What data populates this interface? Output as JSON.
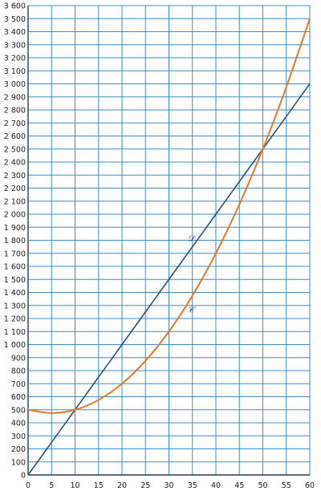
{
  "chart_data": {
    "type": "line",
    "title": "",
    "xlabel": "",
    "ylabel": "",
    "xlim": [
      0,
      60
    ],
    "ylim": [
      0,
      3600
    ],
    "grid": true,
    "x_ticks": [
      0,
      5,
      10,
      15,
      20,
      25,
      30,
      35,
      40,
      45,
      50,
      55,
      60
    ],
    "y_ticks": [
      0,
      100,
      200,
      300,
      400,
      500,
      600,
      700,
      800,
      900,
      1000,
      1100,
      1200,
      1300,
      1400,
      1500,
      1600,
      1700,
      1800,
      1900,
      2000,
      2100,
      2200,
      2300,
      2400,
      2500,
      2600,
      2700,
      2800,
      2900,
      3000,
      3100,
      3200,
      3300,
      3400,
      3500,
      3600
    ],
    "x_tick_labels": [
      "0",
      "5",
      "10",
      "15",
      "20",
      "25",
      "30",
      "35",
      "40",
      "45",
      "50",
      "55",
      "60"
    ],
    "y_tick_labels": [
      "0",
      "100",
      "200",
      "300",
      "400",
      "500",
      "600",
      "700",
      "800",
      "900",
      "1 000",
      "1 100",
      "1 200",
      "1 300",
      "1 400",
      "1 500",
      "1 600",
      "1 700",
      "1 800",
      "1 900",
      "2 000",
      "2 100",
      "2 200",
      "2 300",
      "2 400",
      "2 500",
      "2 600",
      "2 700",
      "2 800",
      "2 900",
      "3 000",
      "3 100",
      "3 200",
      "3 300",
      "3 400",
      "3 500",
      "3 600"
    ],
    "series": [
      {
        "name": "𝒟",
        "color": "#1f4e79",
        "x": [
          0,
          10,
          20,
          30,
          40,
          50,
          60
        ],
        "y": [
          0,
          500,
          1000,
          1500,
          2000,
          2500,
          3000
        ],
        "label_at": [
          35,
          1820
        ]
      },
      {
        "name": "𝒞",
        "color": "#e07b2a",
        "x": [
          0,
          5,
          10,
          15,
          20,
          25,
          30,
          35,
          40,
          45,
          50,
          55,
          60
        ],
        "y": [
          500,
          475,
          500,
          575,
          700,
          875,
          1100,
          1375,
          1700,
          2075,
          2500,
          2975,
          3500
        ],
        "label_at": [
          35,
          1270
        ]
      }
    ]
  }
}
